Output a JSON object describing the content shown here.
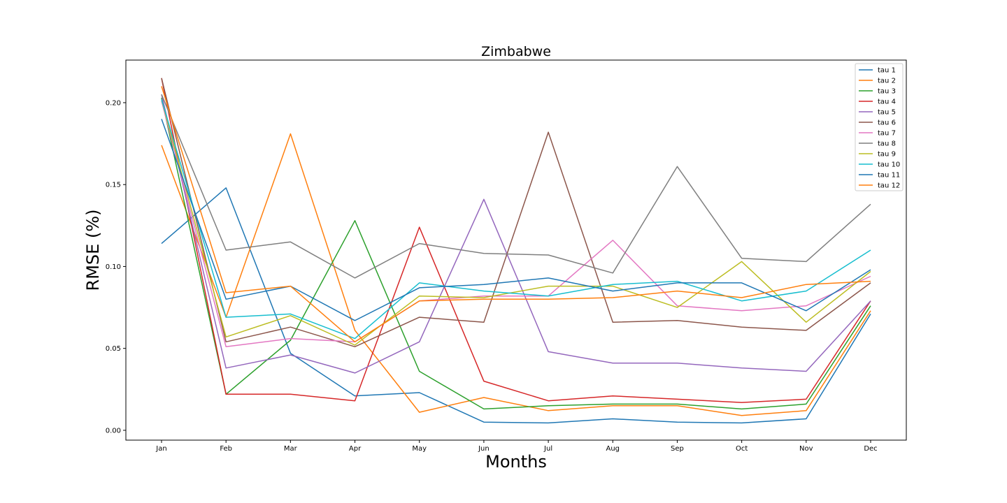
{
  "chart_data": {
    "type": "line",
    "title": "Zimbabwe",
    "xlabel": "Months",
    "ylabel": "RMSE (%)",
    "categories": [
      "Jan",
      "Feb",
      "Mar",
      "Apr",
      "May",
      "Jun",
      "Jul",
      "Aug",
      "Sep",
      "Oct",
      "Nov",
      "Dec"
    ],
    "ylim": [
      -0.006,
      0.226
    ],
    "yticks": [
      0.0,
      0.05,
      0.1,
      0.15,
      0.2
    ],
    "ytick_labels": [
      "0.00",
      "0.05",
      "0.10",
      "0.15",
      "0.20"
    ],
    "grid": false,
    "legend_position": "top-right",
    "series": [
      {
        "name": "tau 1",
        "color": "#1f77b4",
        "values": [
          0.114,
          0.148,
          0.047,
          0.021,
          0.023,
          0.005,
          0.0045,
          0.007,
          0.005,
          0.0045,
          0.007,
          0.071
        ]
      },
      {
        "name": "tau 2",
        "color": "#ff7f0e",
        "values": [
          0.174,
          0.069,
          0.181,
          0.061,
          0.011,
          0.02,
          0.012,
          0.015,
          0.015,
          0.009,
          0.012,
          0.073
        ]
      },
      {
        "name": "tau 3",
        "color": "#2ca02c",
        "values": [
          0.203,
          0.022,
          0.055,
          0.128,
          0.036,
          0.013,
          0.015,
          0.016,
          0.016,
          0.013,
          0.016,
          0.076
        ]
      },
      {
        "name": "tau 4",
        "color": "#d62728",
        "values": [
          0.215,
          0.022,
          0.022,
          0.018,
          0.124,
          0.03,
          0.018,
          0.021,
          0.019,
          0.017,
          0.019,
          0.079
        ]
      },
      {
        "name": "tau 5",
        "color": "#9467bd",
        "values": [
          0.205,
          0.038,
          0.046,
          0.035,
          0.054,
          0.141,
          0.048,
          0.041,
          0.041,
          0.038,
          0.036,
          0.079
        ]
      },
      {
        "name": "tau 6",
        "color": "#8c564b",
        "values": [
          0.215,
          0.054,
          0.063,
          0.051,
          0.069,
          0.066,
          0.182,
          0.066,
          0.067,
          0.063,
          0.061,
          0.09
        ]
      },
      {
        "name": "tau 7",
        "color": "#e377c2",
        "values": [
          0.201,
          0.051,
          0.056,
          0.054,
          0.079,
          0.082,
          0.082,
          0.116,
          0.076,
          0.073,
          0.076,
          0.094
        ]
      },
      {
        "name": "tau 8",
        "color": "#7f7f7f",
        "values": [
          0.205,
          0.11,
          0.115,
          0.093,
          0.114,
          0.108,
          0.107,
          0.096,
          0.161,
          0.105,
          0.103,
          0.138
        ]
      },
      {
        "name": "tau 9",
        "color": "#bcbd22",
        "values": [
          0.202,
          0.057,
          0.07,
          0.052,
          0.082,
          0.081,
          0.088,
          0.088,
          0.075,
          0.103,
          0.066,
          0.097
        ]
      },
      {
        "name": "tau 10",
        "color": "#17becf",
        "values": [
          0.202,
          0.069,
          0.071,
          0.056,
          0.09,
          0.085,
          0.082,
          0.089,
          0.091,
          0.079,
          0.085,
          0.11
        ]
      },
      {
        "name": "tau 11",
        "color": "#1f77b4",
        "values": [
          0.19,
          0.08,
          0.088,
          0.067,
          0.087,
          0.089,
          0.093,
          0.085,
          0.09,
          0.09,
          0.073,
          0.098
        ]
      },
      {
        "name": "tau 12",
        "color": "#ff7f0e",
        "values": [
          0.21,
          0.084,
          0.088,
          0.054,
          0.079,
          0.08,
          0.08,
          0.081,
          0.085,
          0.081,
          0.089,
          0.091
        ]
      }
    ]
  }
}
